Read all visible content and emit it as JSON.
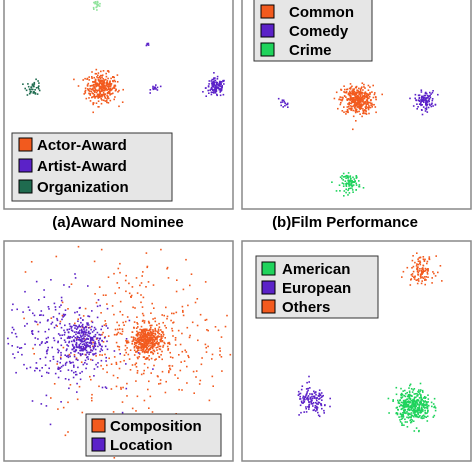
{
  "chart_data": [
    {
      "type": "scatter",
      "caption": "(a)Award Nominee",
      "legend": [
        "Actor-Award",
        "Artist-Award",
        "Organization"
      ],
      "series": [
        {
          "name": "Actor-Award",
          "color": "#f25a1e",
          "clusters": [
            {
              "x": 0.42,
              "y": 0.58,
              "spread": 0.035,
              "n": 320
            }
          ]
        },
        {
          "name": "Artist-Award",
          "color": "#5b22c8",
          "clusters": [
            {
              "x": 0.93,
              "y": 0.58,
              "spread": 0.022,
              "n": 120
            },
            {
              "x": 0.66,
              "y": 0.58,
              "spread": 0.01,
              "n": 14
            },
            {
              "x": 0.63,
              "y": 0.79,
              "spread": 0.006,
              "n": 6
            }
          ]
        },
        {
          "name": "Organization",
          "color": "#1f6b4f",
          "clusters": [
            {
              "x": 0.12,
              "y": 0.58,
              "spread": 0.017,
              "n": 40
            }
          ]
        },
        {
          "name": "",
          "color": "#8fe39c",
          "clusters": [
            {
              "x": 0.4,
              "y": 0.98,
              "spread": 0.01,
              "n": 20
            }
          ]
        }
      ]
    },
    {
      "type": "scatter",
      "caption": "(b)Film Performance",
      "legend": [
        "Common",
        "Comedy",
        "Crime"
      ],
      "series": [
        {
          "name": "Common",
          "color": "#f25a1e",
          "clusters": [
            {
              "x": 0.5,
              "y": 0.52,
              "spread": 0.035,
              "n": 380
            }
          ]
        },
        {
          "name": "Comedy",
          "color": "#5b22c8",
          "clusters": [
            {
              "x": 0.8,
              "y": 0.52,
              "spread": 0.022,
              "n": 110
            },
            {
              "x": 0.17,
              "y": 0.5,
              "spread": 0.012,
              "n": 14
            }
          ]
        },
        {
          "name": "Crime",
          "color": "#1fd35c",
          "clusters": [
            {
              "x": 0.47,
              "y": 0.12,
              "spread": 0.022,
              "n": 90
            }
          ]
        }
      ]
    },
    {
      "type": "scatter",
      "caption": "",
      "legend": [
        "Composition",
        "Location"
      ],
      "series": [
        {
          "name": "Composition",
          "color": "#f25a1e",
          "clusters": [
            {
              "x": 0.62,
              "y": 0.55,
              "spread": 0.035,
              "n": 420
            },
            {
              "x": 0.6,
              "y": 0.55,
              "spread": 0.2,
              "n": 380
            }
          ]
        },
        {
          "name": "Location",
          "color": "#5b22c8",
          "clusters": [
            {
              "x": 0.34,
              "y": 0.55,
              "spread": 0.04,
              "n": 230
            },
            {
              "x": 0.22,
              "y": 0.55,
              "spread": 0.13,
              "n": 280
            }
          ]
        }
      ]
    },
    {
      "type": "scatter",
      "caption": "",
      "legend": [
        "American",
        "European",
        "Others"
      ],
      "series": [
        {
          "name": "American",
          "color": "#1fd35c",
          "clusters": [
            {
              "x": 0.75,
              "y": 0.25,
              "spread": 0.038,
              "n": 400
            }
          ]
        },
        {
          "name": "European",
          "color": "#5b22c8",
          "clusters": [
            {
              "x": 0.3,
              "y": 0.27,
              "spread": 0.035,
              "n": 130
            }
          ]
        },
        {
          "name": "Others",
          "color": "#f25a1e",
          "clusters": [
            {
              "x": 0.78,
              "y": 0.88,
              "spread": 0.03,
              "n": 110
            }
          ]
        }
      ]
    }
  ]
}
